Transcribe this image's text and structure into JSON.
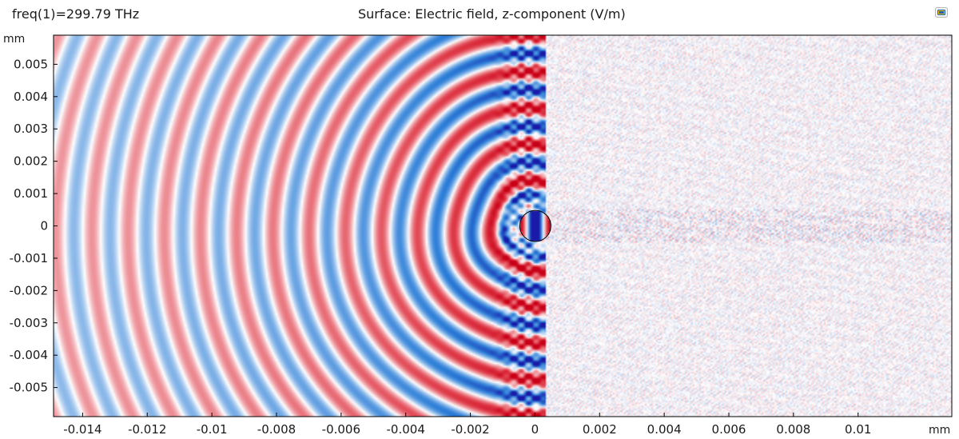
{
  "header": {
    "parameter": "freq(1)=299.79 THz",
    "title": "Surface: Electric field, z-component (V/m)"
  },
  "icons": {
    "corner": "comsol-logo-icon"
  },
  "colors": {
    "positive": "#e03d4a",
    "negative": "#2d7fd8",
    "core_positive": "#c80018",
    "core_negative": "#1a1aa8",
    "background": "#ffffff",
    "axis": "#000000"
  },
  "chart_data": {
    "type": "heatmap",
    "title": "Surface: Electric field, z-component (V/m)",
    "subtitle": "freq(1)=299.79 THz",
    "xlabel": "mm",
    "ylabel": "mm",
    "xlim": [
      -0.0149,
      0.0129
    ],
    "ylim": [
      -0.0059,
      0.0059
    ],
    "x_ticks": [
      -0.014,
      -0.012,
      -0.01,
      -0.008,
      -0.006,
      -0.004,
      -0.002,
      0,
      0.002,
      0.004,
      0.006,
      0.008,
      0.01
    ],
    "x_tick_labels": [
      "-0.014",
      "-0.012",
      "-0.01",
      "-0.008",
      "-0.006",
      "-0.004",
      "-0.002",
      "0",
      "0.002",
      "0.004",
      "0.006",
      "0.008",
      "0.01"
    ],
    "y_ticks": [
      0.005,
      0.004,
      0.003,
      0.002,
      0.001,
      0,
      -0.001,
      -0.002,
      -0.003,
      -0.004,
      -0.005
    ],
    "y_tick_labels": [
      "0.005",
      "0.004",
      "0.003",
      "0.002",
      "0.001",
      "0",
      "-0.001",
      "-0.002",
      "-0.003",
      "-0.004",
      "-0.005"
    ],
    "grid": false,
    "legend": "none",
    "colormap": "wave (blue-white-red, diverging)",
    "scatterer": {
      "shape": "circle",
      "center": [
        1e-05,
        0.0
      ],
      "radius": 0.00048
    },
    "field": {
      "source_direction": "left",
      "wavefront_spacing_mm": 0.00112,
      "shadow_region": "x > 0.0003 (fine speckle noise)"
    }
  }
}
